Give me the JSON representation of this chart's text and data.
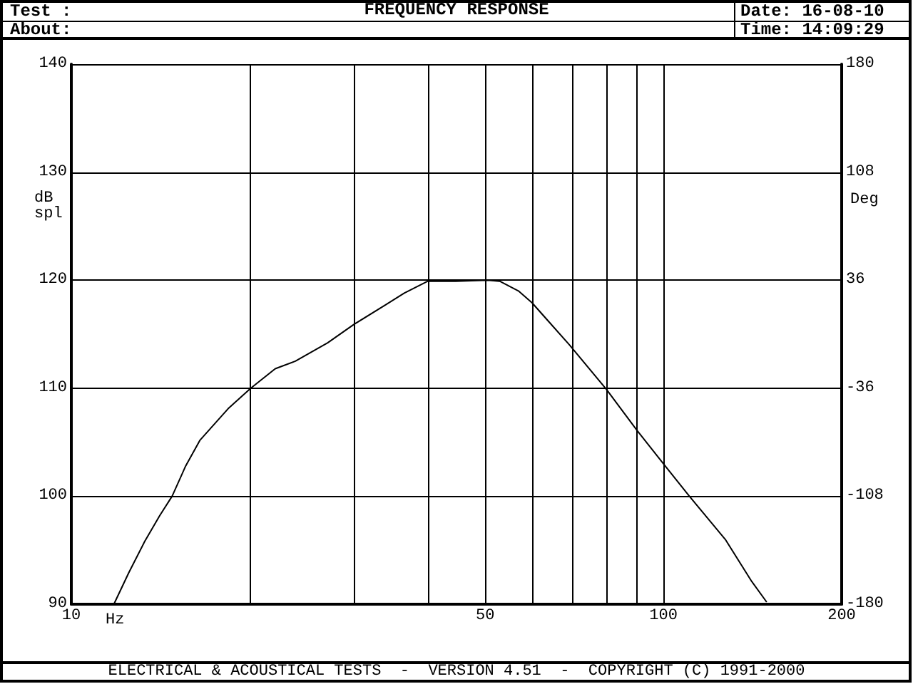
{
  "chart_data": {
    "type": "line",
    "title": "FREQUENCY RESPONSE",
    "xlabel": "Hz",
    "ylabel": "dB spl",
    "y2label": "Deg",
    "annotations": [
      "Test :",
      "About:",
      "Date: 16-08-10",
      "Time: 14:09:29",
      "ELECTRICAL & ACOUSTICAL TESTS  -  VERSION 4.51  -  COPYRIGHT (C) 1991-2000"
    ],
    "log": "x",
    "grid": true,
    "marker": "none",
    "line_style": "solid",
    "xlim": [
      10,
      200
    ],
    "xticks": [
      10,
      {
        "value": 20,
        "label": null
      },
      {
        "value": 30,
        "label": null
      },
      {
        "value": 40,
        "label": null
      },
      50,
      {
        "value": 60,
        "label": null
      },
      {
        "value": 70,
        "label": null
      },
      {
        "value": 80,
        "label": null
      },
      {
        "value": 90,
        "label": null
      },
      100,
      200
    ],
    "ylim": [
      90,
      140
    ],
    "yticks": [
      90,
      100,
      110,
      120,
      130,
      140
    ],
    "y2lim": [
      -180,
      180
    ],
    "y2ticks": [
      -180,
      -108,
      -36,
      36,
      108,
      180
    ],
    "series": [
      {
        "color": "#000000",
        "x": [
          11.8,
          12.5,
          13.3,
          14.1,
          14.8,
          15.6,
          16.5,
          18.4,
          20.1,
          22.1,
          23.9,
          27.1,
          30,
          33.9,
          36.5,
          40,
          44.6,
          50.5,
          52.9,
          56.9,
          60,
          69.4,
          80.1,
          90.2,
          100,
          110.6,
          127.2,
          141,
          149.4
        ],
        "values": [
          90,
          92.9,
          95.8,
          98.2,
          100,
          102.8,
          105.2,
          108.1,
          110,
          111.8,
          112.5,
          114.2,
          115.9,
          117.7,
          118.8,
          119.9,
          119.9,
          120,
          119.9,
          119,
          117.9,
          114,
          109.9,
          106.1,
          103,
          100,
          96,
          92.1,
          90.2
        ]
      }
    ]
  }
}
